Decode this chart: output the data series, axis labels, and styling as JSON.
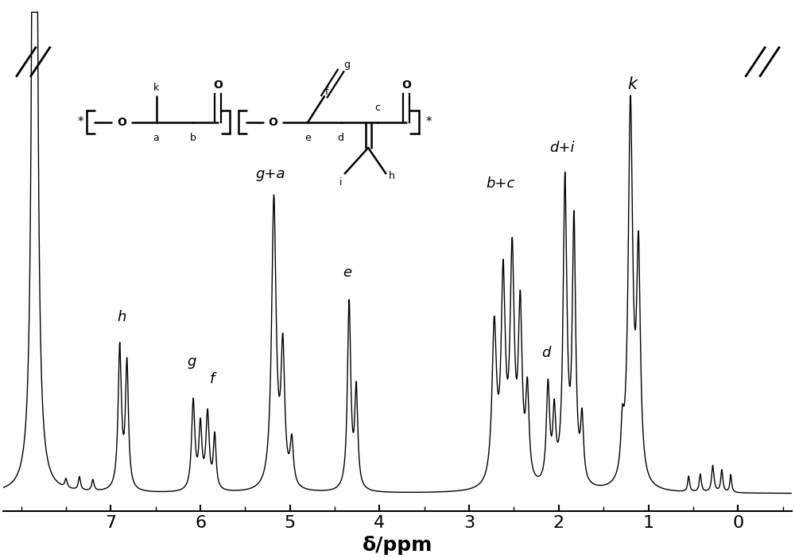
{
  "xlabel": "δ/ppm",
  "xlim": [
    8.2,
    -0.6
  ],
  "ylim": [
    -0.04,
    1.1
  ],
  "background_color": "#ffffff",
  "axis_label_fontsize": 18,
  "tick_fontsize": 16,
  "xticks": [
    7,
    6,
    5,
    4,
    3,
    2,
    1,
    0
  ]
}
